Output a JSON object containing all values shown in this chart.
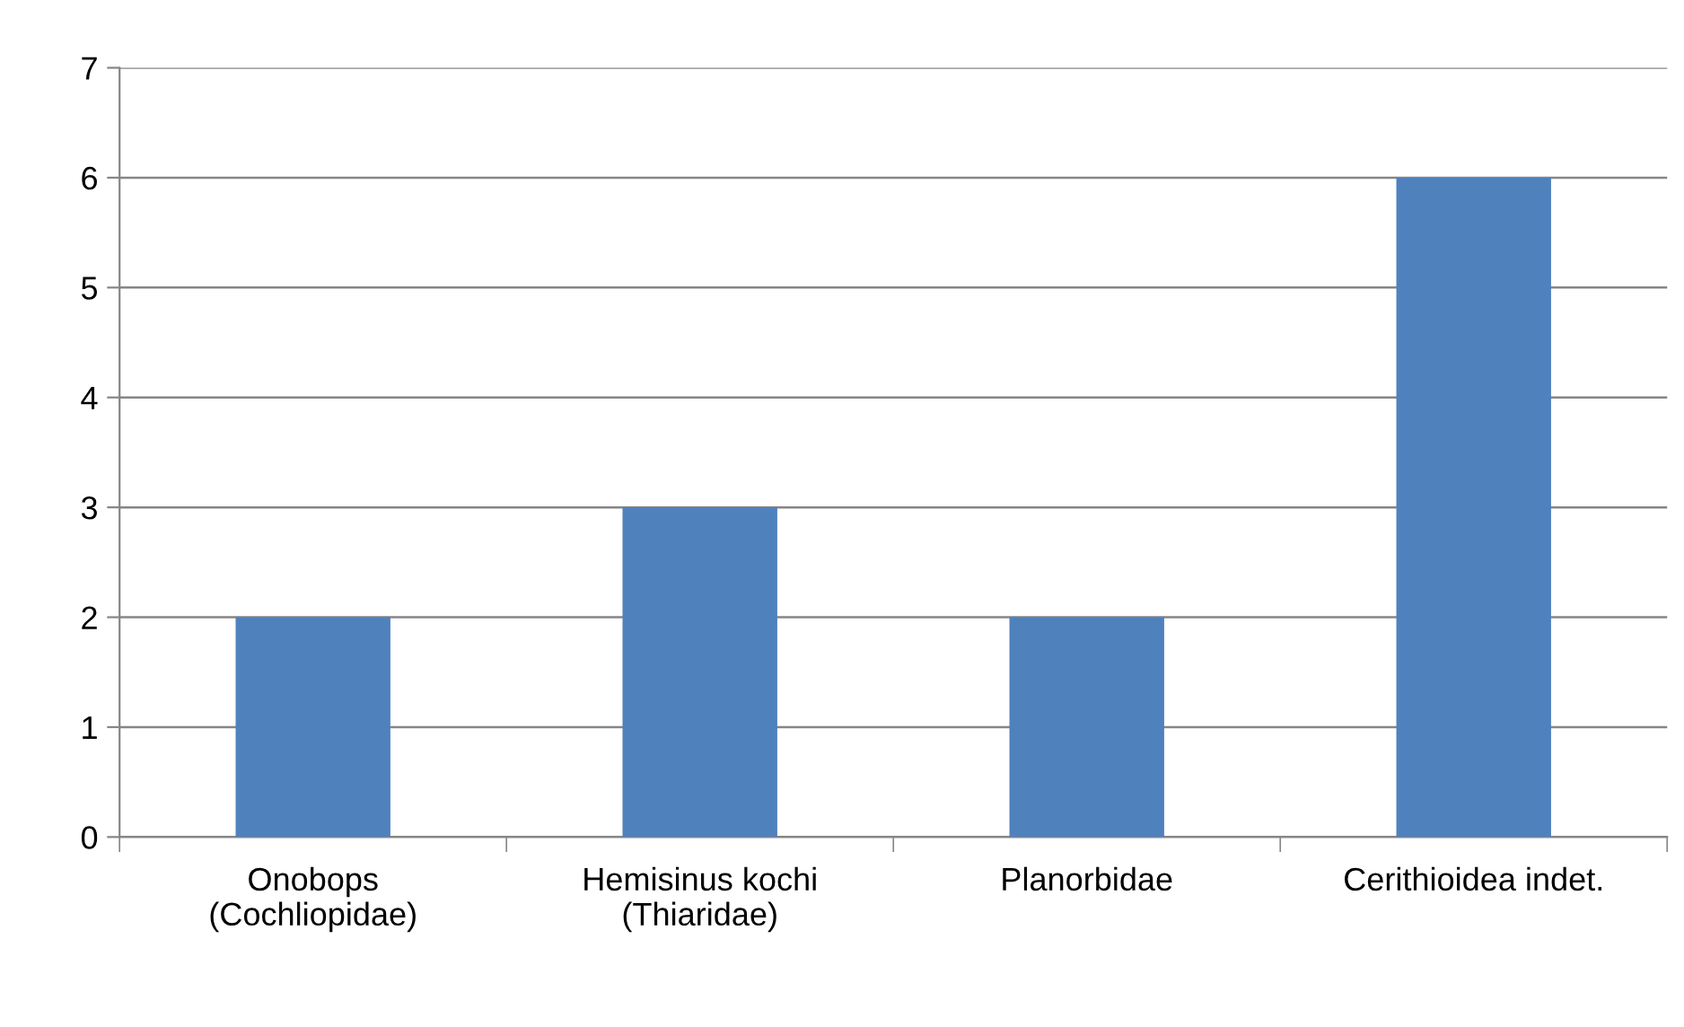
{
  "chart_data": {
    "type": "bar",
    "categories": [
      "Onobops\n(Cochliopidae)",
      "Hemisinus kochi\n(Thiaridae)",
      "Planorbidae",
      "Cerithioidea indet."
    ],
    "values": [
      2,
      3,
      2,
      6
    ],
    "color": "#4f81bd",
    "ylim": [
      0,
      7
    ],
    "yticks": [
      0,
      1,
      2,
      3,
      4,
      5,
      6,
      7
    ],
    "grid": "y",
    "legend": false
  }
}
